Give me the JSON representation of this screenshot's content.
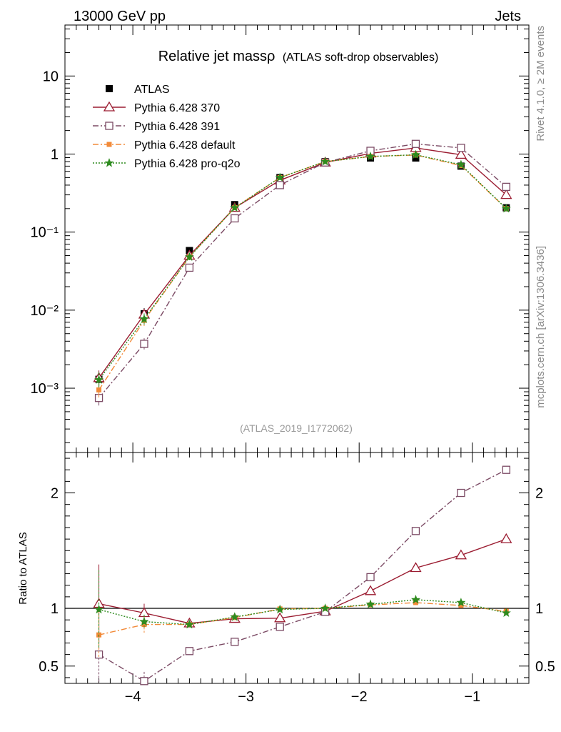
{
  "header": {
    "left": "13000 GeV pp",
    "right": "Jets"
  },
  "side_labels": {
    "top": "Rivet 4.1.0, ≥ 2M events",
    "bottom": "mcplots.cern.ch [arXiv:1306.3436]"
  },
  "chart_data": [
    {
      "type": "line",
      "title": "Relative jet massρ",
      "subtitle": "(ATLAS soft-drop observables)",
      "watermark": "(ATLAS_2019_I1772062)",
      "yscale": "log",
      "xlim": [
        -4.6,
        -0.5
      ],
      "ylim": [
        0.00015,
        45
      ],
      "ytick_labels": [
        "10⁻³",
        "10⁻²",
        "10⁻¹",
        "1",
        "10"
      ],
      "legend_position": "top-left",
      "x": [
        -4.3,
        -3.9,
        -3.5,
        -3.1,
        -2.7,
        -2.3,
        -1.9,
        -1.5,
        -1.1,
        -0.7
      ],
      "series": [
        {
          "name": "ATLAS",
          "color": "#000000",
          "marker": "filled-square",
          "line": "none",
          "values": [
            0.0013,
            0.009,
            0.058,
            0.225,
            0.5,
            0.8,
            0.89,
            0.89,
            0.7,
            0.205
          ]
        },
        {
          "name": "Pythia 6.428 370",
          "color": "#9b1c31",
          "marker": "open-triangle",
          "line": "solid",
          "values": [
            0.00135,
            0.0088,
            0.05,
            0.205,
            0.46,
            0.78,
            1.02,
            1.2,
            0.98,
            0.3
          ]
        },
        {
          "name": "Pythia 6.428 391",
          "color": "#7b4a64",
          "marker": "open-square",
          "line": "dashdot",
          "values": [
            0.00075,
            0.0037,
            0.035,
            0.15,
            0.4,
            0.78,
            1.1,
            1.35,
            1.2,
            0.38
          ]
        },
        {
          "name": "Pythia 6.428 default",
          "color": "#f28a38",
          "marker": "filled-square-small",
          "line": "dashdot",
          "values": [
            0.00095,
            0.0074,
            0.048,
            0.205,
            0.5,
            0.8,
            0.93,
            0.97,
            0.71,
            0.2
          ]
        },
        {
          "name": "Pythia 6.428 pro-q2o",
          "color": "#2e8b1f",
          "marker": "star",
          "line": "dotted",
          "values": [
            0.00128,
            0.0077,
            0.048,
            0.205,
            0.5,
            0.8,
            0.93,
            0.98,
            0.73,
            0.2
          ]
        }
      ]
    },
    {
      "type": "line",
      "ylabel": "Ratio to ATLAS",
      "ylim": [
        0.35,
        2.35
      ],
      "xlim": [
        -4.6,
        -0.5
      ],
      "reference_line": 1,
      "xtick_labels": [
        "−4",
        "−3",
        "−2",
        "−1"
      ],
      "ytick_labels": [
        "0.5",
        "1",
        "2"
      ],
      "x": [
        -4.3,
        -3.9,
        -3.5,
        -3.1,
        -2.7,
        -2.3,
        -1.9,
        -1.5,
        -1.1,
        -0.7
      ],
      "series": [
        {
          "name": "Pythia 6.428 370",
          "color": "#9b1c31",
          "marker": "open-triangle",
          "line": "solid",
          "values": [
            1.04,
            0.96,
            0.87,
            0.91,
            0.915,
            0.975,
            1.15,
            1.35,
            1.46,
            1.6
          ]
        },
        {
          "name": "Pythia 6.428 391",
          "color": "#7b4a64",
          "marker": "open-square",
          "line": "dashdot",
          "values": [
            0.6,
            0.37,
            0.63,
            0.71,
            0.84,
            0.97,
            1.27,
            1.67,
            2.0,
            2.2
          ]
        },
        {
          "name": "Pythia 6.428 default",
          "color": "#f28a38",
          "marker": "filled-square-small",
          "line": "dashdot",
          "values": [
            0.77,
            0.86,
            0.86,
            0.92,
            0.995,
            1.0,
            1.03,
            1.05,
            1.025,
            0.975
          ]
        },
        {
          "name": "Pythia 6.428 pro-q2o",
          "color": "#2e8b1f",
          "marker": "star",
          "line": "dotted",
          "values": [
            0.99,
            0.885,
            0.86,
            0.925,
            0.99,
            1.0,
            1.035,
            1.075,
            1.05,
            0.96
          ]
        }
      ]
    }
  ]
}
